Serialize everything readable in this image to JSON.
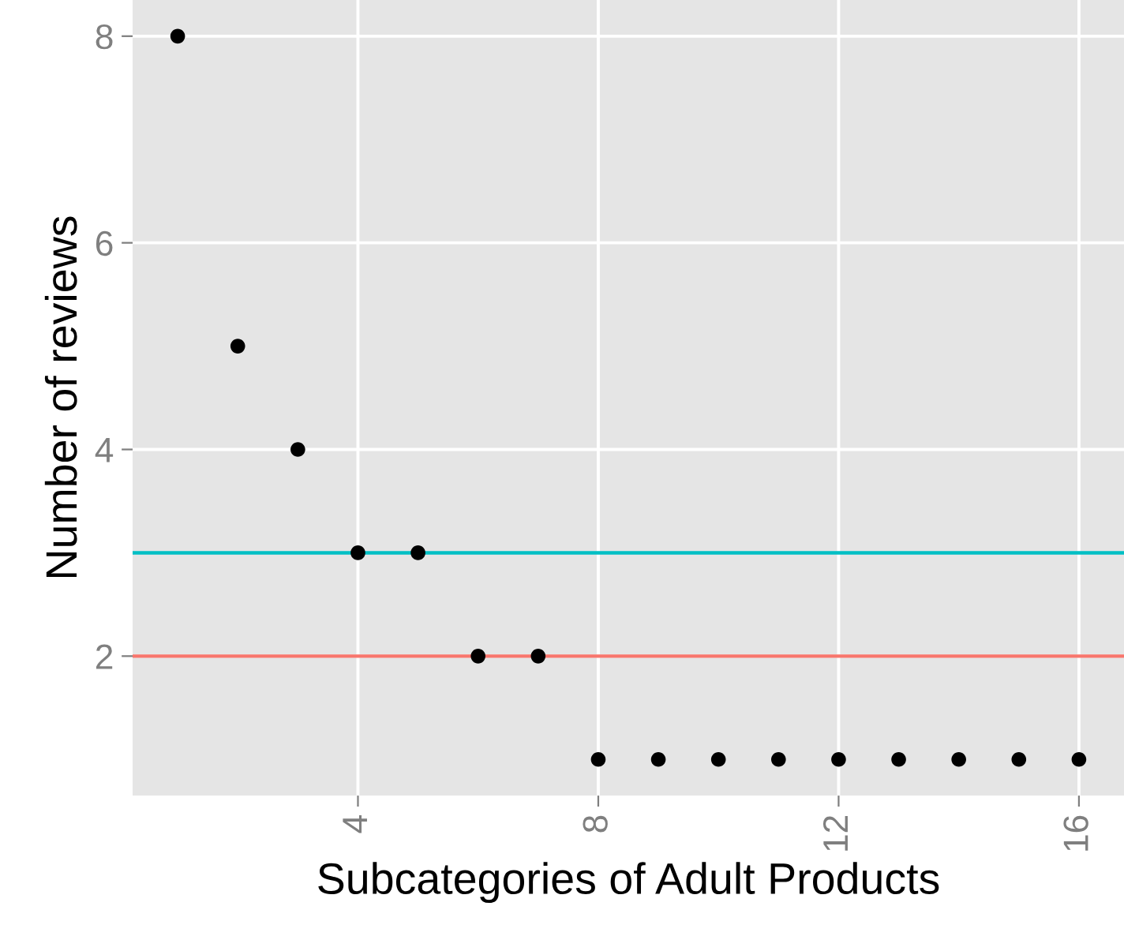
{
  "chart_data": {
    "type": "scatter",
    "xlabel": "Subcategories of Adult Products",
    "ylabel": "Number of reviews",
    "x": [
      1,
      2,
      3,
      4,
      5,
      6,
      7,
      8,
      9,
      10,
      11,
      12,
      13,
      14,
      15,
      16
    ],
    "values": [
      8,
      5,
      4,
      3,
      3,
      2,
      2,
      1,
      1,
      1,
      1,
      1,
      1,
      1,
      1,
      1
    ],
    "color": "#000000",
    "marker": "circle",
    "xlim": [
      0.25,
      16.75
    ],
    "xticks": [
      4,
      8,
      12,
      16
    ],
    "ylim": [
      0.65,
      8.35
    ],
    "yticks": [
      2,
      4,
      6,
      8
    ],
    "grid": true,
    "ref_lines": [
      {
        "axis": "y",
        "value": 3,
        "color": "#00bfc4"
      },
      {
        "axis": "y",
        "value": 2,
        "color": "#f8766d"
      }
    ]
  }
}
